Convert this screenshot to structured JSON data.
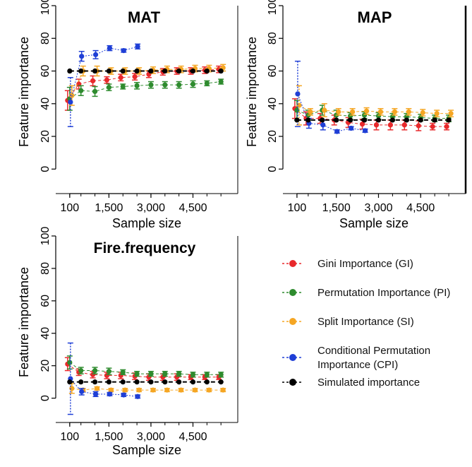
{
  "colors": {
    "GI": "#e8292c",
    "PI": "#2e8b2e",
    "SI": "#f5a623",
    "CPI": "#1f3fd6",
    "SIM": "#000000"
  },
  "legend": {
    "items": [
      {
        "key": "GI",
        "label": "Gini Importance (GI)"
      },
      {
        "key": "PI",
        "label": "Permutation Importance (PI)"
      },
      {
        "key": "SI",
        "label": "Split Importance (SI)"
      },
      {
        "key": "CPI",
        "label": [
          "Conditional Permutation",
          "Importance (CPI)"
        ]
      },
      {
        "key": "SIM",
        "label": "Simulated importance"
      }
    ]
  },
  "chart_data": [
    {
      "type": "scatter",
      "title": "MAT",
      "xlabel": "Sample size",
      "ylabel": "Feature importance",
      "xlim": [
        -400,
        6100
      ],
      "ylim": [
        -15,
        100
      ],
      "xticks": [
        100,
        1500,
        3000,
        4500
      ],
      "xtick_labels": [
        "100",
        "1,500",
        "3,000",
        "4,500"
      ],
      "yticks": [
        0,
        20,
        40,
        60,
        80,
        100
      ],
      "ytick_labels": [
        "0",
        "20",
        "40",
        "60",
        "80",
        "100"
      ],
      "x": [
        100,
        500,
        1000,
        1500,
        2000,
        2500,
        3000,
        3500,
        4000,
        4500,
        5000,
        5500
      ],
      "series": [
        {
          "name": "Gini Importance (GI)",
          "key": "GI",
          "values": [
            42,
            52,
            54,
            54.5,
            56,
            56.5,
            58,
            59.5,
            60,
            60,
            60.5,
            61
          ],
          "err": [
            6,
            3,
            3,
            2,
            2,
            2,
            2,
            2,
            2,
            2,
            2,
            2
          ]
        },
        {
          "name": "Permutation Importance (PI)",
          "key": "PI",
          "values": [
            43,
            48,
            47.5,
            50,
            50.5,
            51,
            51.5,
            51.5,
            51.5,
            52,
            52.5,
            53.5
          ],
          "err": [
            7,
            3,
            3,
            2,
            1.5,
            2,
            2,
            2,
            2,
            2,
            1.5,
            1.5
          ]
        },
        {
          "name": "Split Importance (SI)",
          "key": "SI",
          "values": [
            45,
            60,
            60,
            60,
            60,
            60,
            60.5,
            61,
            61,
            61.5,
            61.5,
            62
          ],
          "err": [
            6,
            3,
            3,
            2,
            2,
            2,
            2,
            2,
            2,
            2,
            2,
            2
          ]
        },
        {
          "name": "Conditional Permutation Importance (CPI)",
          "key": "CPI",
          "values": [
            41,
            69,
            70,
            74,
            72.5,
            75,
            null,
            null,
            null,
            null,
            null,
            null
          ],
          "err": [
            15,
            3,
            2.5,
            1.5,
            1,
            1.5,
            0,
            0,
            0,
            0,
            0,
            0
          ]
        },
        {
          "name": "Simulated importance",
          "key": "SIM",
          "values": [
            60,
            60,
            60,
            60,
            60,
            60,
            60,
            60,
            60,
            60,
            60,
            60
          ],
          "err": [
            0,
            0,
            0,
            0,
            0,
            0,
            0,
            0,
            0,
            0,
            0,
            0
          ]
        }
      ]
    },
    {
      "type": "scatter",
      "title": "MAP",
      "xlabel": "Sample size",
      "ylabel": "Feature importance",
      "xlim": [
        -400,
        6100
      ],
      "ylim": [
        -15,
        100
      ],
      "xticks": [
        100,
        1500,
        3000,
        4500
      ],
      "xtick_labels": [
        "100",
        "1,500",
        "3,000",
        "4,500"
      ],
      "yticks": [
        0,
        20,
        40,
        60,
        80,
        100
      ],
      "ytick_labels": [
        "0",
        "20",
        "40",
        "60",
        "80",
        "100"
      ],
      "x": [
        100,
        500,
        1000,
        1500,
        2000,
        2500,
        3000,
        3500,
        4000,
        4500,
        5000,
        5500
      ],
      "series": [
        {
          "name": "Gini Importance (GI)",
          "key": "GI",
          "values": [
            37,
            31,
            31,
            30,
            28.5,
            27.5,
            27,
            27,
            27,
            26.5,
            26,
            26
          ],
          "err": [
            6,
            4,
            3,
            3,
            3,
            3,
            3,
            3,
            3,
            3,
            2,
            2
          ]
        },
        {
          "name": "Permutation Importance (PI)",
          "key": "PI",
          "values": [
            36,
            33,
            36,
            33,
            32.5,
            33,
            32.5,
            32,
            32,
            31.5,
            31,
            31
          ],
          "err": [
            6,
            3,
            3,
            3,
            2,
            2,
            2,
            2,
            2,
            2,
            2,
            2
          ]
        },
        {
          "name": "Split Importance (SI)",
          "key": "SI",
          "values": [
            39,
            35,
            36,
            35,
            35,
            35.5,
            35,
            35,
            35,
            34.5,
            34,
            34
          ],
          "err": [
            12,
            2,
            4,
            2,
            2,
            2,
            2,
            2,
            2,
            2,
            2,
            2
          ]
        },
        {
          "name": "Conditional Permutation Importance (CPI)",
          "key": "CPI",
          "values": [
            46,
            28,
            27,
            23,
            25,
            23.5,
            null,
            null,
            null,
            null,
            null,
            null
          ],
          "err": [
            20,
            3,
            3,
            1,
            1,
            1,
            0,
            0,
            0,
            0,
            0,
            0
          ]
        },
        {
          "name": "Simulated importance",
          "key": "SIM",
          "values": [
            30,
            30,
            30,
            30,
            30,
            30,
            30,
            30,
            30,
            30,
            30,
            30
          ],
          "err": [
            0,
            0,
            0,
            0,
            0,
            0,
            0,
            0,
            0,
            0,
            0,
            0
          ]
        }
      ]
    },
    {
      "type": "scatter",
      "title": "Fire.frequency",
      "xlabel": "Sample size",
      "ylabel": "Feature importance",
      "xlim": [
        -400,
        6100
      ],
      "ylim": [
        -15,
        100
      ],
      "xticks": [
        100,
        1500,
        3000,
        4500
      ],
      "xtick_labels": [
        "100",
        "1,500",
        "3,000",
        "4,500"
      ],
      "yticks": [
        0,
        20,
        40,
        60,
        80,
        100
      ],
      "ytick_labels": [
        "0",
        "20",
        "40",
        "60",
        "80",
        "100"
      ],
      "x": [
        100,
        500,
        1000,
        1500,
        2000,
        2500,
        3000,
        3500,
        4000,
        4500,
        5000,
        5500
      ],
      "series": [
        {
          "name": "Gini Importance (GI)",
          "key": "GI",
          "values": [
            21,
            16,
            14.5,
            14,
            14,
            13.5,
            13,
            13,
            13,
            13,
            13,
            13
          ],
          "err": [
            4,
            2,
            2,
            2,
            2,
            2,
            2,
            2,
            2,
            1.5,
            1.5,
            1.5
          ]
        },
        {
          "name": "Permutation Importance (PI)",
          "key": "PI",
          "values": [
            22,
            17,
            17,
            16.5,
            16,
            15,
            15,
            15,
            15,
            14.5,
            14.5,
            14.5
          ],
          "err": [
            4,
            2,
            2,
            2,
            1.5,
            1.5,
            1.5,
            1.5,
            1.5,
            1.5,
            1.5,
            1.5
          ]
        },
        {
          "name": "Split Importance (SI)",
          "key": "SI",
          "values": [
            6,
            5,
            6,
            5,
            5,
            5,
            5,
            5,
            5,
            5,
            5,
            5
          ],
          "err": [
            3,
            1,
            1,
            1,
            1,
            1,
            1,
            1,
            1,
            1,
            1,
            1
          ]
        },
        {
          "name": "Conditional Permutation Importance (CPI)",
          "key": "CPI",
          "values": [
            12,
            4,
            2.5,
            2.5,
            2,
            1,
            null,
            null,
            null,
            null,
            null,
            null
          ],
          "err": [
            22,
            2,
            1.5,
            1,
            1,
            1,
            0,
            0,
            0,
            0,
            0,
            0
          ]
        },
        {
          "name": "Simulated importance",
          "key": "SIM",
          "values": [
            10,
            10,
            10,
            10,
            10,
            10,
            10,
            10,
            10,
            10,
            10,
            10
          ],
          "err": [
            0,
            0,
            0,
            0,
            0,
            0,
            0,
            0,
            0,
            0,
            0,
            0
          ]
        }
      ]
    }
  ]
}
